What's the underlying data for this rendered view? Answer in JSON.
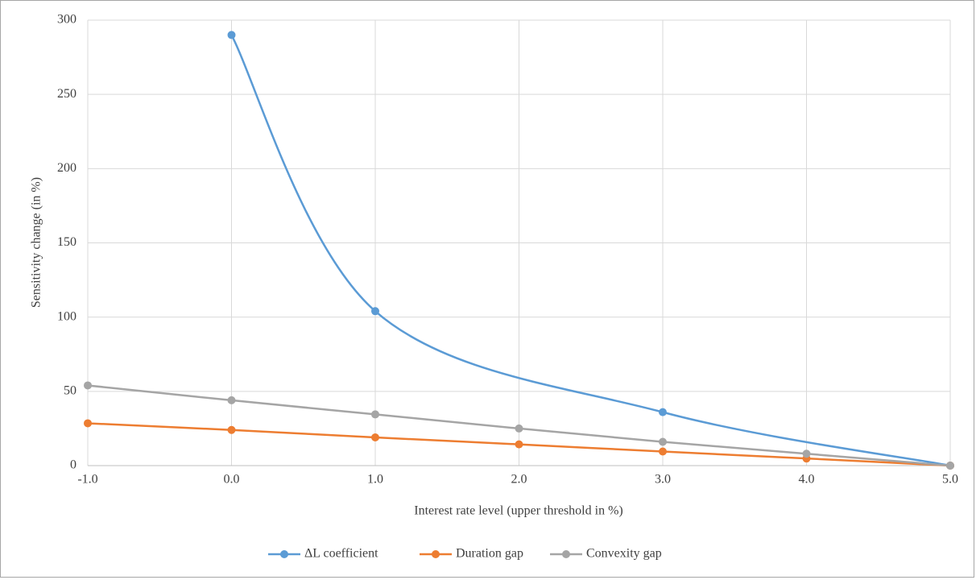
{
  "chart_data": {
    "type": "line",
    "smooth": true,
    "x_label": "Interest rate level (upper threshold in %)",
    "y_label": "Sensitivity change (in %)",
    "xlim": [
      -1,
      5
    ],
    "xticks": [
      {
        "value": -1,
        "label": "-1.0"
      },
      {
        "value": 0,
        "label": "0.0"
      },
      {
        "value": 1,
        "label": "1.0"
      },
      {
        "value": 2,
        "label": "2.0"
      },
      {
        "value": 3,
        "label": "3.0"
      },
      {
        "value": 4,
        "label": "4.0"
      },
      {
        "value": 5,
        "label": "5.0"
      }
    ],
    "ylim": [
      0,
      300
    ],
    "yticks": [
      0,
      50,
      100,
      150,
      200,
      250,
      300
    ],
    "grid": true,
    "legend": "bottom",
    "series": [
      {
        "name": "ΔL coefficient",
        "color": "#5b9bd5",
        "x": [
          0,
          1,
          3,
          5
        ],
        "values": [
          290,
          104,
          36,
          0
        ]
      },
      {
        "name": "Duration gap",
        "color": "#ed7d31",
        "x": [
          -1,
          0,
          1,
          2,
          3,
          4,
          5
        ],
        "values": [
          28.5,
          24,
          19,
          14.3,
          9.5,
          4.8,
          0
        ]
      },
      {
        "name": "Convexity gap",
        "color": "#a5a5a5",
        "x": [
          -1,
          0,
          1,
          2,
          3,
          4,
          5
        ],
        "values": [
          54,
          44,
          34.5,
          25,
          16,
          8,
          0
        ]
      }
    ]
  }
}
